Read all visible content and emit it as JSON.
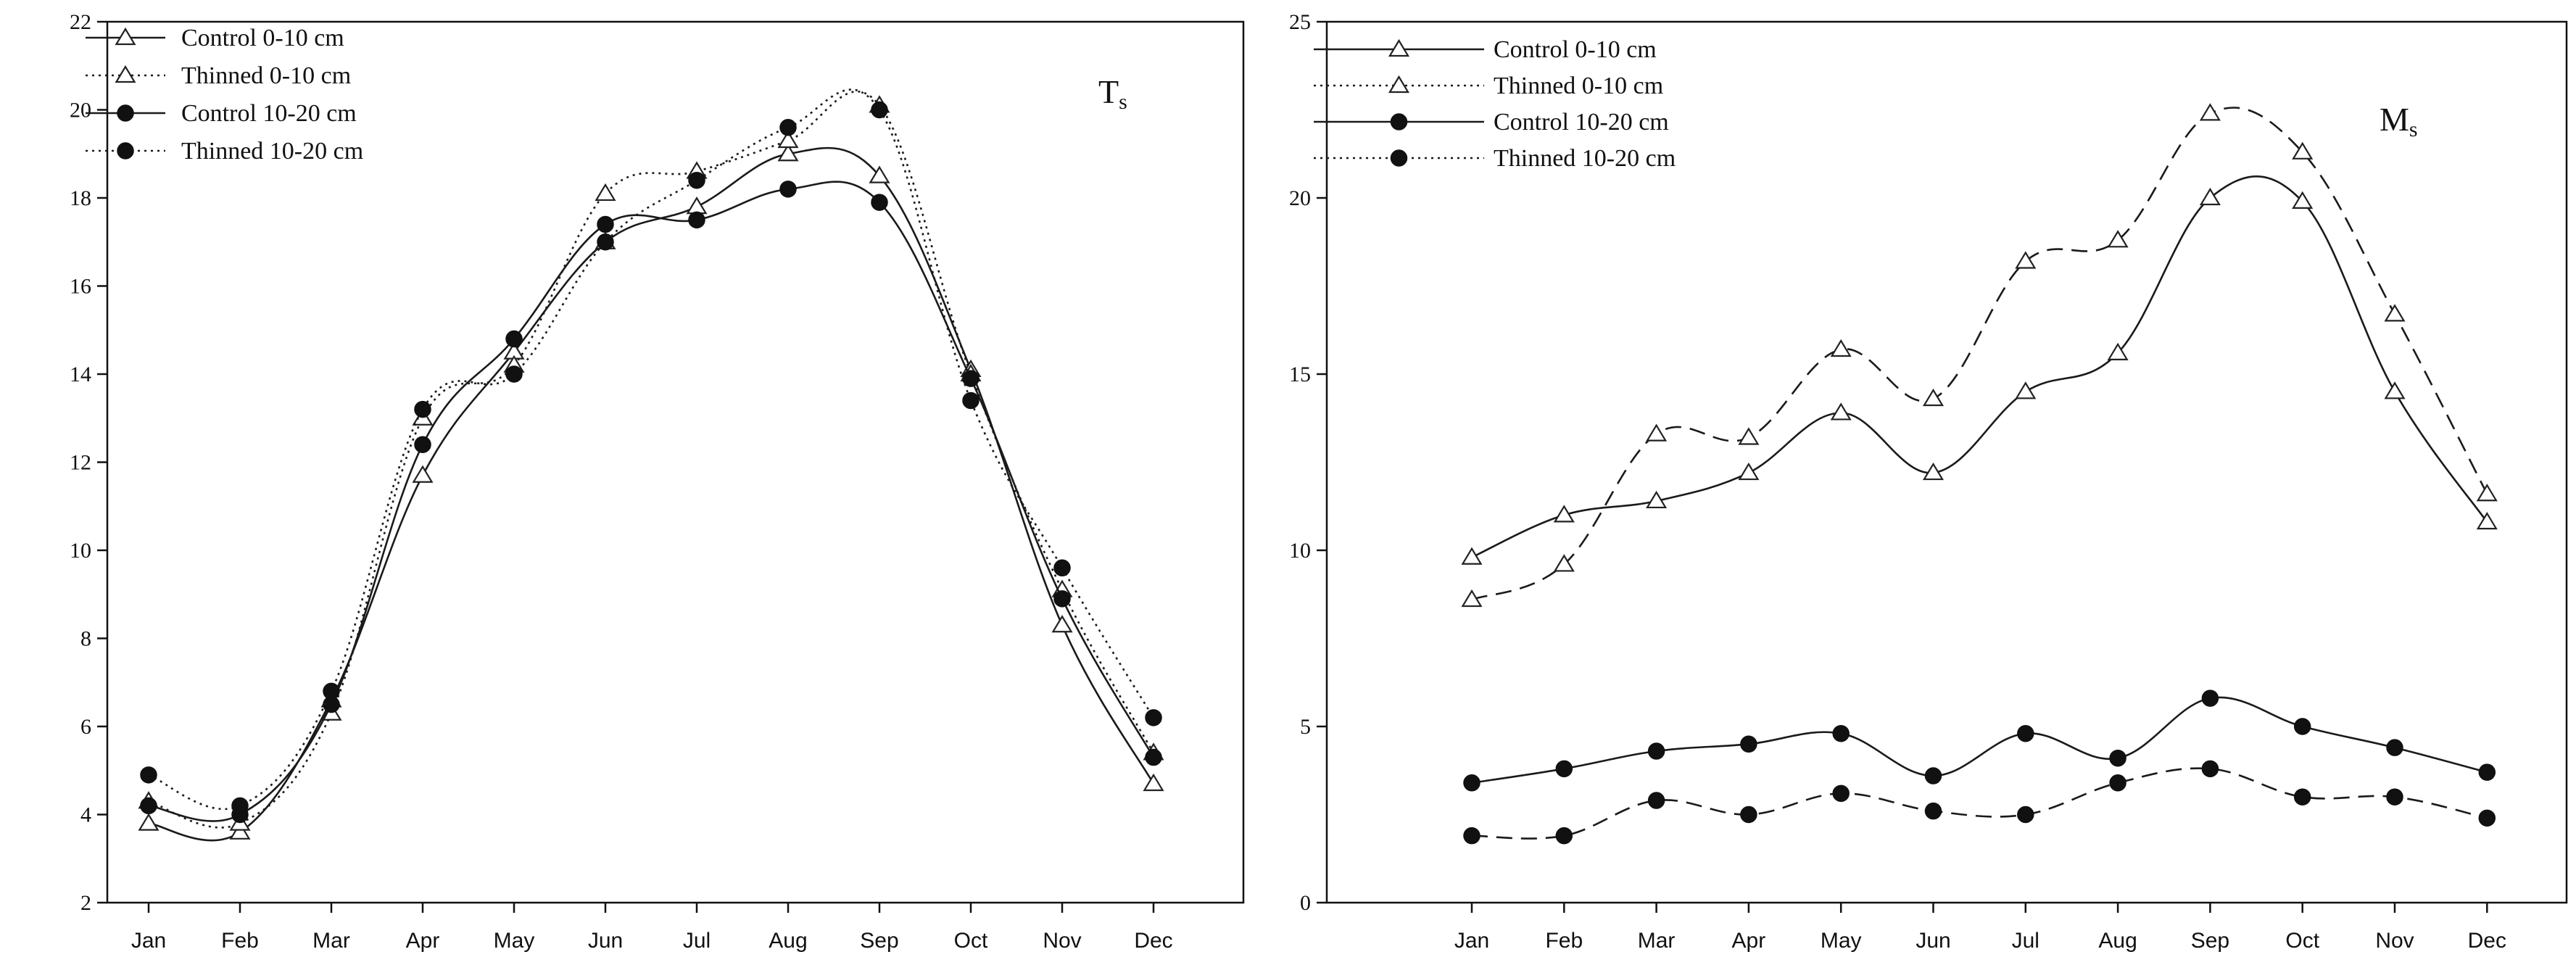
{
  "chart_data": [
    {
      "type": "line",
      "title": "",
      "panel_label_main": "T",
      "panel_label_sub": "s",
      "xlabel": "",
      "ylabel": "",
      "categories": [
        "Jan",
        "Feb",
        "Mar",
        "Apr",
        "May",
        "Jun",
        "Jul",
        "Aug",
        "Sep",
        "Oct",
        "Nov",
        "Dec"
      ],
      "ylim": [
        2,
        22
      ],
      "yticks": [
        2,
        4,
        6,
        8,
        10,
        12,
        14,
        16,
        18,
        20,
        22
      ],
      "legend_position": "top-left",
      "series": [
        {
          "name": "Control 0-10 cm",
          "marker": "triangle",
          "line": "solid",
          "values": [
            3.8,
            3.6,
            6.6,
            11.7,
            14.5,
            17.0,
            17.8,
            19.0,
            18.5,
            14.1,
            8.3,
            4.7
          ]
        },
        {
          "name": "Thinned 0-10 cm",
          "marker": "triangle",
          "line": "dotted",
          "values": [
            4.3,
            3.8,
            6.3,
            13.0,
            14.2,
            18.1,
            18.6,
            19.3,
            20.1,
            14.0,
            9.1,
            5.4
          ]
        },
        {
          "name": "Control 10-20 cm",
          "marker": "circle",
          "line": "solid",
          "values": [
            4.2,
            4.0,
            6.5,
            12.4,
            14.8,
            17.4,
            17.5,
            18.2,
            17.9,
            13.9,
            8.9,
            5.3
          ]
        },
        {
          "name": "Thinned 10-20 cm",
          "marker": "circle",
          "line": "dotted",
          "values": [
            4.9,
            4.2,
            6.8,
            13.2,
            14.0,
            17.0,
            18.4,
            19.6,
            20.0,
            13.4,
            9.6,
            6.2
          ]
        }
      ]
    },
    {
      "type": "line",
      "title": "",
      "panel_label_main": "M",
      "panel_label_sub": "s",
      "xlabel": "",
      "ylabel": "",
      "categories": [
        "Jan",
        "Feb",
        "Mar",
        "Apr",
        "May",
        "Jun",
        "Jul",
        "Aug",
        "Sep",
        "Oct",
        "Nov",
        "Dec"
      ],
      "ylim": [
        0,
        25
      ],
      "yticks": [
        0,
        5,
        10,
        15,
        20,
        25
      ],
      "legend_position": "top-left",
      "series": [
        {
          "name": "Control 0-10 cm",
          "marker": "triangle",
          "line": "solid",
          "legend_line": "solid",
          "values": [
            9.8,
            11.0,
            11.4,
            12.2,
            13.9,
            12.2,
            14.5,
            15.6,
            20.0,
            19.9,
            14.5,
            10.8
          ]
        },
        {
          "name": "Thinned 0-10 cm",
          "marker": "triangle",
          "line": "dashed",
          "legend_line": "dotted",
          "values": [
            8.6,
            9.6,
            13.3,
            13.2,
            15.7,
            14.3,
            18.2,
            18.8,
            22.4,
            21.3,
            16.7,
            11.6
          ]
        },
        {
          "name": "Control 10-20 cm",
          "marker": "circle",
          "line": "solid",
          "legend_line": "solid",
          "values": [
            3.4,
            3.8,
            4.3,
            4.5,
            4.8,
            3.6,
            4.8,
            4.1,
            5.8,
            5.0,
            4.4,
            3.7
          ]
        },
        {
          "name": "Thinned 10-20 cm",
          "marker": "circle",
          "line": "dashed",
          "legend_line": "dotted",
          "values": [
            1.9,
            1.9,
            2.9,
            2.5,
            3.1,
            2.6,
            2.5,
            3.4,
            3.8,
            3.0,
            3.0,
            2.4
          ]
        }
      ]
    }
  ]
}
